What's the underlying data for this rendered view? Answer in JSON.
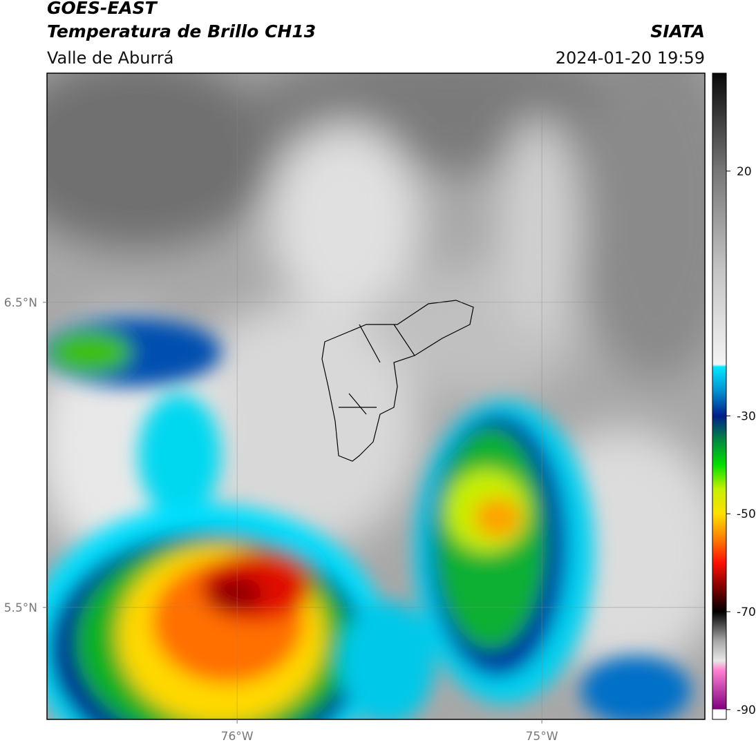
{
  "header": {
    "title": "GOES-EAST",
    "subtitle": "Temperatura de Brillo CH13",
    "region": "Valle de Aburrá",
    "source": "SIATA",
    "datetime": "2024-01-20 19:59"
  },
  "map": {
    "lonlim": [
      -76.624,
      -74.465
    ],
    "latlim": [
      5.133,
      7.251
    ],
    "lonticks": [
      {
        "value": -76,
        "label": "76°W"
      },
      {
        "value": -75,
        "label": "75°W"
      }
    ],
    "latticks": [
      {
        "value": 6.5,
        "label": "6.5°N"
      },
      {
        "value": 5.5,
        "label": "5.5°N"
      }
    ]
  },
  "colorbar": {
    "clim": [
      -92,
      40
    ],
    "ticks": [
      20,
      -30,
      -50,
      -70,
      -90
    ],
    "colormap": [
      {
        "value": 40,
        "color": "#0a0a0a"
      },
      {
        "value": 20,
        "color": "#777777"
      },
      {
        "value": 0,
        "color": "#c4c4c4"
      },
      {
        "value": -19.5,
        "color": "#f4f4f4"
      },
      {
        "value": -20,
        "color": "#00e8ff"
      },
      {
        "value": -25,
        "color": "#0090d0"
      },
      {
        "value": -30,
        "color": "#001e8a"
      },
      {
        "value": -35,
        "color": "#008a40"
      },
      {
        "value": -40,
        "color": "#00e000"
      },
      {
        "value": -45,
        "color": "#c8f000"
      },
      {
        "value": -50,
        "color": "#ffe000"
      },
      {
        "value": -55,
        "color": "#ff8000"
      },
      {
        "value": -60,
        "color": "#ff1000"
      },
      {
        "value": -65,
        "color": "#800000"
      },
      {
        "value": -70,
        "color": "#000000"
      },
      {
        "value": -76,
        "color": "#a8a8a8"
      },
      {
        "value": -80,
        "color": "#e8e8e8"
      },
      {
        "value": -82,
        "color": "#ff80d0"
      },
      {
        "value": -89.9,
        "color": "#800080"
      },
      {
        "value": -90,
        "color": "#ffffff"
      },
      {
        "value": -92,
        "color": "#ffffff"
      }
    ]
  }
}
